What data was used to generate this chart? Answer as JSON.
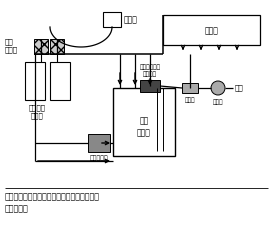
{
  "bg_color": "#ffffff",
  "lc": "#000000",
  "gray_pump": "#aaaaaa",
  "gray_tank": "#888888",
  "gray_valve": "#aaaaaa",
  "gray_flow": "#999999",
  "gray_supply_pump": "#999999",
  "gray_float": "#555555",
  "caption_line1": "図１　水耕栽培における日施用法のシステム",
  "caption_line2": "　　　構成",
  "label_timer": "タイマ",
  "label_cult": "栽培槽",
  "label_metering": "定量\nポンプ",
  "label_fert": "肥料原液\nタンク",
  "label_circ": "循環\nタンク",
  "label_float": "フロートレス\nスイッチ",
  "label_solenoid": "電磁弁",
  "label_flow": "流量計",
  "label_rawwater": "原水",
  "label_supply": "給液ポンプ"
}
